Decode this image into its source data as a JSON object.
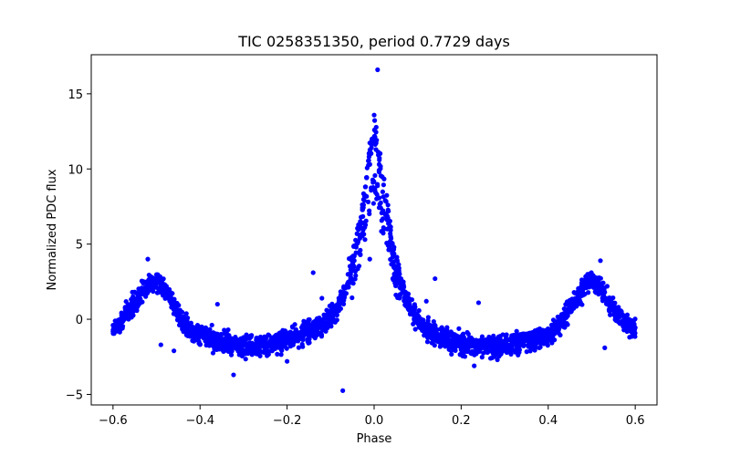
{
  "chart_data": {
    "type": "scatter",
    "title": "TIC 0258351350, period 0.7729 days",
    "xlabel": "Phase",
    "ylabel": "Normalized PDC flux",
    "xlim": [
      -0.65,
      0.65
    ],
    "ylim": [
      -5.7,
      17.6
    ],
    "xticks": [
      -0.6,
      -0.4,
      -0.2,
      0.0,
      0.2,
      0.4,
      0.6
    ],
    "xtick_labels": [
      "−0.6",
      "−0.4",
      "−0.2",
      "0.0",
      "0.2",
      "0.4",
      "0.6"
    ],
    "yticks": [
      -5,
      0,
      5,
      10,
      15
    ],
    "ytick_labels": [
      "−5",
      "0",
      "5",
      "10",
      "15"
    ],
    "grid": false,
    "marker_color": "#0000ff",
    "series": [
      {
        "profile": {
          "x": [
            -0.6,
            -0.57,
            -0.54,
            -0.52,
            -0.5,
            -0.48,
            -0.46,
            -0.44,
            -0.42,
            -0.4,
            -0.36,
            -0.32,
            -0.28,
            -0.24,
            -0.2,
            -0.16,
            -0.12,
            -0.09,
            -0.07,
            -0.05,
            -0.035,
            -0.02,
            -0.01,
            0.0,
            0.01,
            0.02,
            0.035,
            0.05,
            0.07,
            0.09,
            0.12,
            0.16,
            0.2,
            0.24,
            0.28,
            0.32,
            0.36,
            0.4,
            0.42,
            0.44,
            0.46,
            0.48,
            0.5,
            0.52,
            0.54,
            0.57,
            0.6
          ],
          "y": [
            -0.8,
            0.3,
            1.4,
            2.2,
            2.6,
            2.1,
            1.0,
            -0.2,
            -0.8,
            -1.1,
            -1.4,
            -1.7,
            -1.8,
            -1.6,
            -1.3,
            -0.9,
            -0.3,
            0.4,
            1.6,
            3.5,
            6.0,
            8.8,
            11.0,
            12.4,
            11.0,
            8.8,
            6.0,
            3.5,
            1.6,
            0.3,
            -0.7,
            -1.3,
            -1.6,
            -1.8,
            -1.8,
            -1.6,
            -1.4,
            -1.1,
            -0.7,
            0.2,
            1.2,
            2.0,
            2.6,
            2.1,
            1.1,
            0.0,
            -0.6
          ],
          "spread": 0.8
        },
        "outliers": [
          {
            "x": 0.008,
            "y": 16.6
          },
          {
            "x": -0.072,
            "y": -4.75
          },
          {
            "x": -0.323,
            "y": -3.7
          },
          {
            "x": -0.01,
            "y": 4.0
          },
          {
            "x": -0.021,
            "y": 5.3
          },
          {
            "x": -0.14,
            "y": 3.1
          },
          {
            "x": 0.14,
            "y": 2.7
          },
          {
            "x": -0.52,
            "y": 4.0
          },
          {
            "x": -0.46,
            "y": -2.1
          },
          {
            "x": -0.49,
            "y": -1.7
          },
          {
            "x": 0.52,
            "y": 3.9
          },
          {
            "x": 0.53,
            "y": -1.9
          },
          {
            "x": 0.23,
            "y": -3.1
          },
          {
            "x": -0.2,
            "y": -2.8
          },
          {
            "x": -0.12,
            "y": 1.4
          },
          {
            "x": 0.12,
            "y": 1.2
          },
          {
            "x": -0.36,
            "y": 1.0
          },
          {
            "x": 0.24,
            "y": 1.1
          }
        ]
      }
    ]
  }
}
